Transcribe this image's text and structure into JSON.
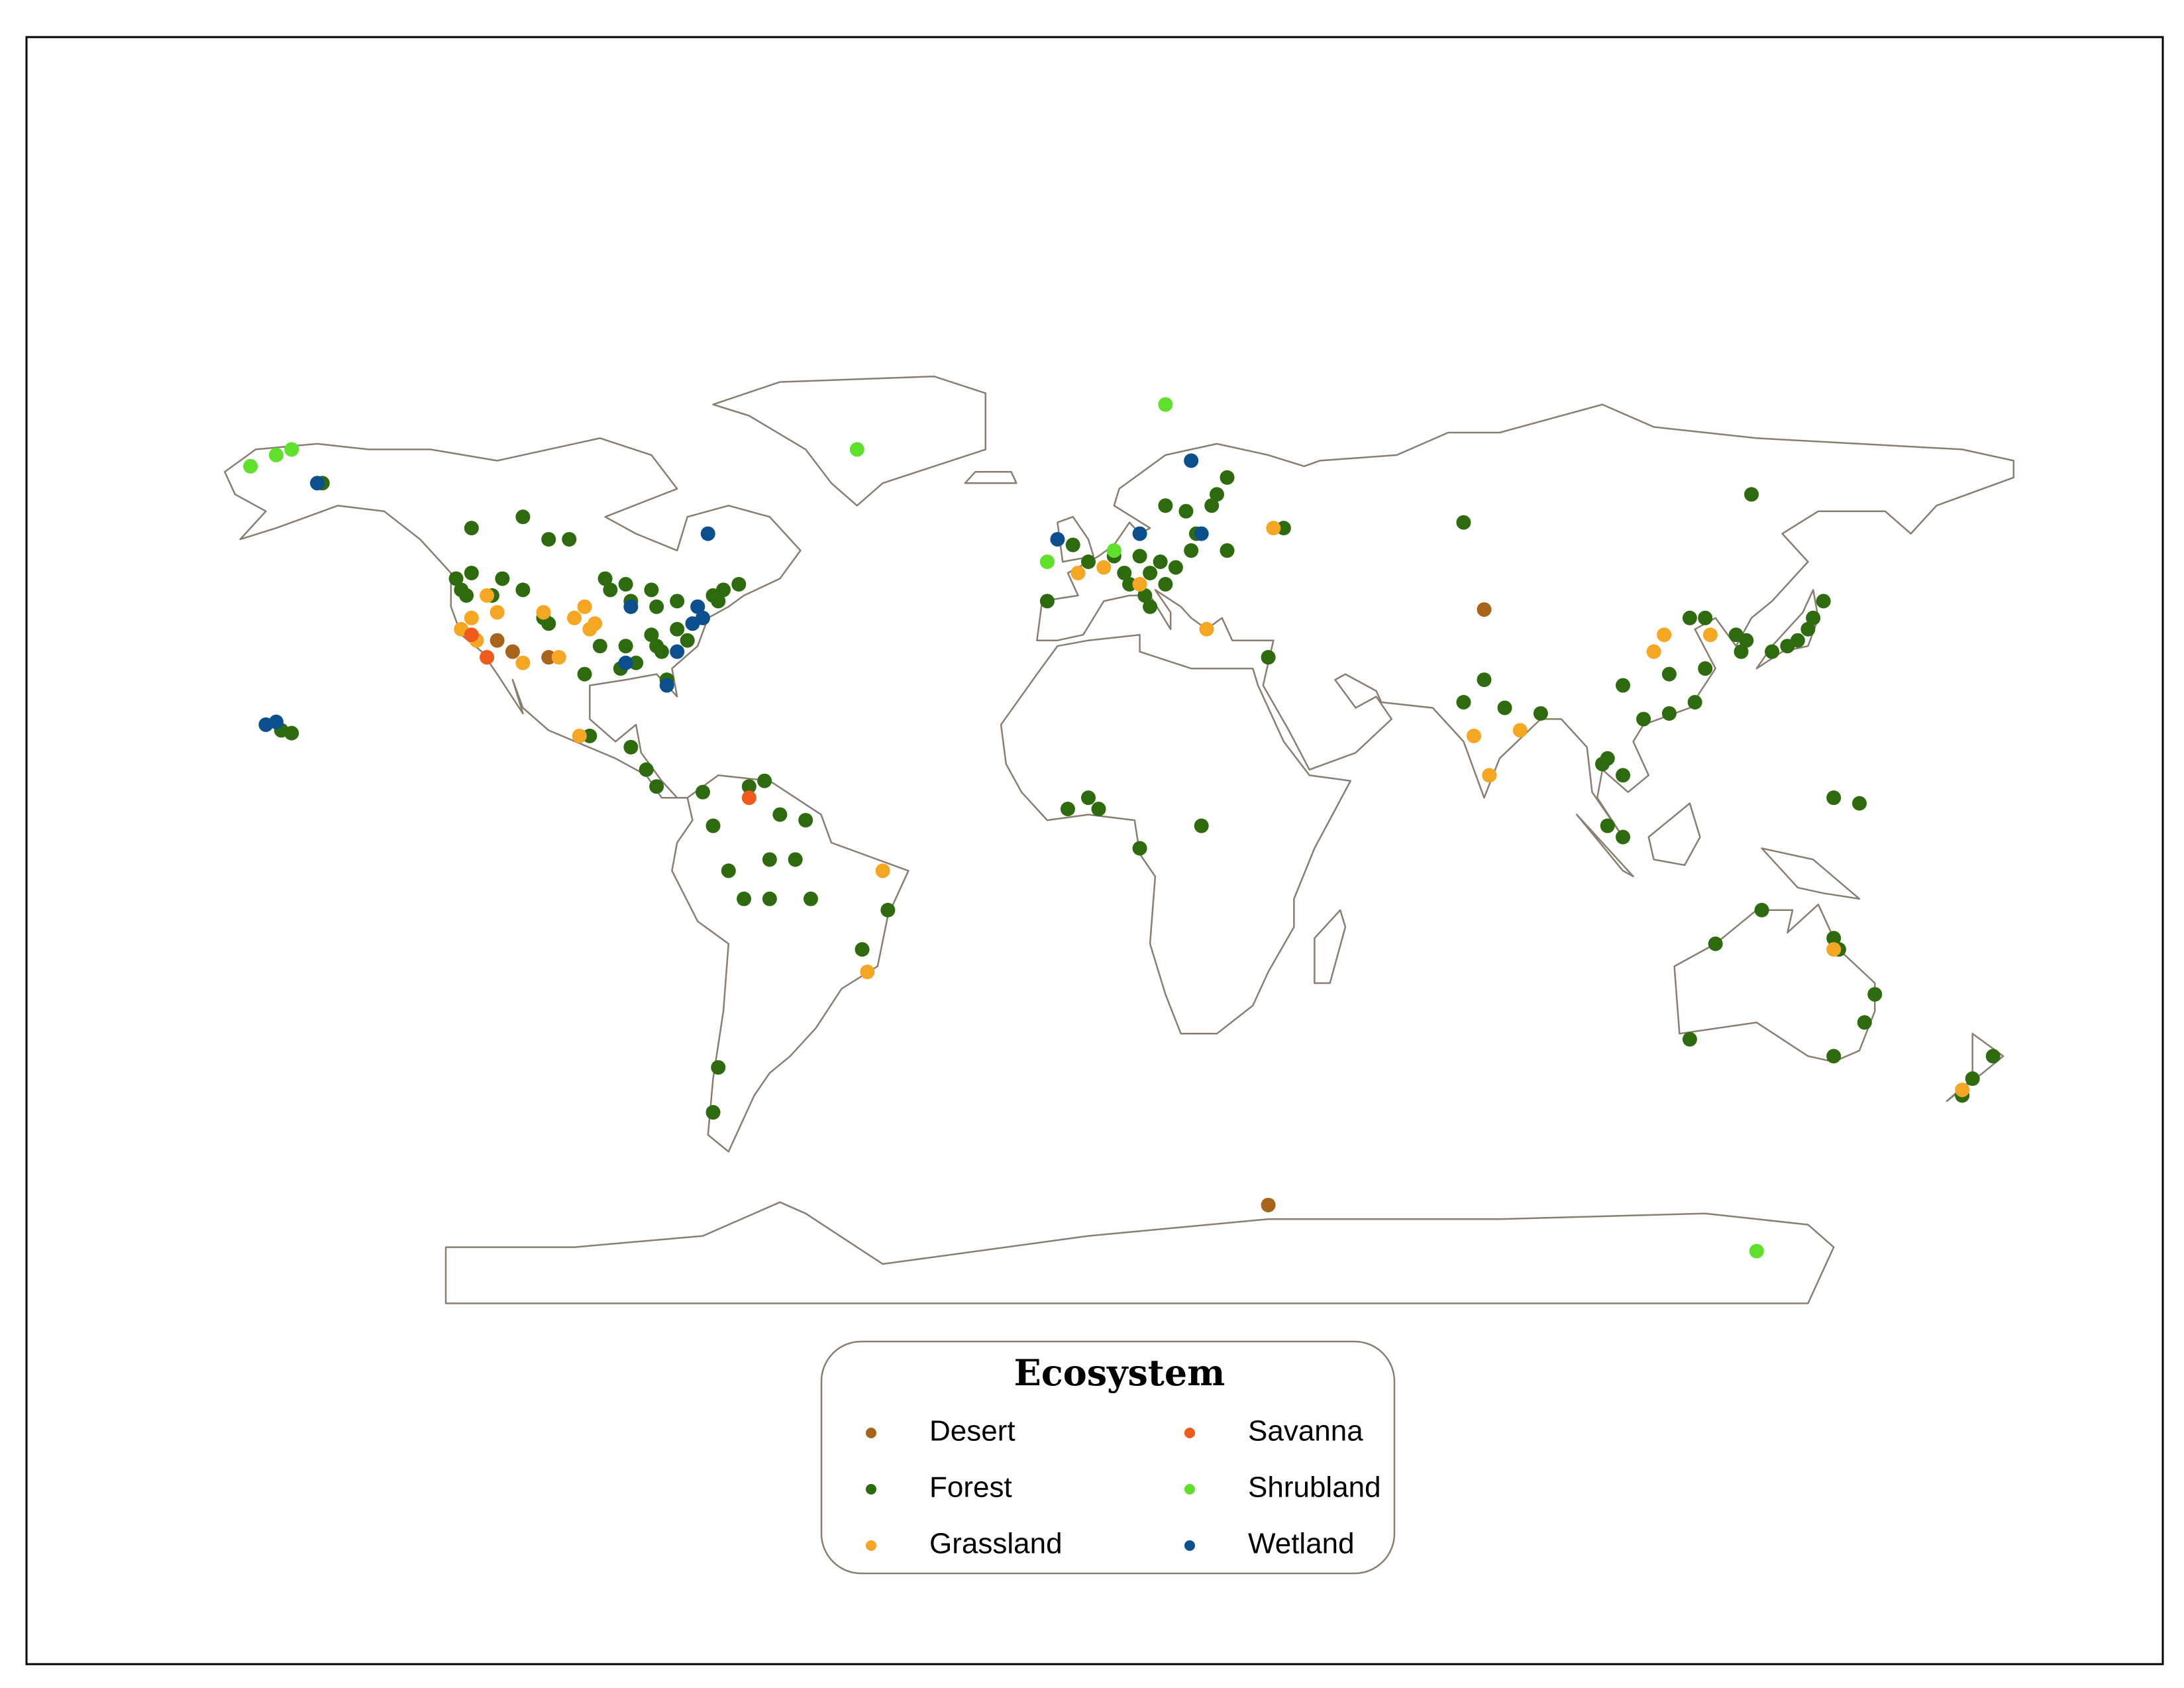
{
  "chart_data": {
    "type": "map",
    "legend_title": "Ecosystem",
    "series": [
      {
        "name": "Desert",
        "color": "#a8641a",
        "x": [
          -115,
          -105,
          -112,
          77,
          35
        ],
        "values": [
          36,
          33,
          34,
          41.5,
          -64.5
        ]
      },
      {
        "name": "Forest",
        "color": "#2e6b0e",
        "x": [
          -123,
          -122,
          -121,
          -120,
          -116,
          -114,
          -110,
          -106,
          -105,
          -94,
          -93,
          -90,
          -89,
          -85,
          -84,
          -80,
          -76,
          -73,
          -72,
          -71,
          -68,
          -80,
          -84,
          -85,
          -83,
          -78,
          -88,
          -90,
          -95,
          -98,
          -82,
          -91,
          -105,
          -101,
          -120,
          -110,
          -149,
          -157,
          -155,
          -97,
          -89,
          -84,
          -86,
          -75,
          -63,
          -66,
          -60,
          -55,
          -73,
          -70,
          -62,
          -57,
          -54,
          -62,
          -67,
          -39,
          -44,
          -72,
          -73,
          -8,
          -3,
          0,
          5,
          7,
          8,
          10,
          12,
          14,
          17,
          20,
          15,
          11,
          12,
          24,
          25,
          19,
          15,
          27,
          21,
          38,
          27,
          0,
          2,
          10,
          22,
          35,
          -4,
          73,
          129,
          77,
          73,
          88,
          81,
          104,
          113,
          108,
          100,
          104,
          101,
          104,
          117,
          120,
          126,
          127,
          128,
          133,
          136,
          138,
          140,
          141,
          143,
          120,
          118,
          113,
          145,
          150,
          101,
          131,
          145,
          146,
          153,
          151,
          145,
          117,
          122,
          172,
          176,
          170
        ],
        "values": [
          47,
          45,
          44,
          48,
          44,
          47,
          45,
          40,
          39,
          47,
          45,
          46,
          43,
          45,
          42,
          43,
          42,
          44,
          43,
          45,
          46,
          38,
          35,
          37,
          34,
          36,
          32,
          35,
          35,
          30,
          29,
          31,
          54,
          54,
          56,
          58,
          64,
          20,
          19.5,
          19,
          17,
          10,
          13,
          9,
          11,
          10,
          5,
          4,
          3,
          -5,
          -3,
          -3,
          -10,
          -10,
          -10,
          -12,
          -19,
          -40,
          -48,
          43,
          53,
          50,
          51,
          48,
          46,
          51,
          48,
          50,
          49,
          52,
          46,
          44,
          42,
          60,
          62,
          59,
          60,
          65,
          55,
          56,
          52,
          8,
          6,
          -1,
          3,
          33,
          6,
          57,
          62,
          29,
          25,
          23,
          24,
          28,
          30,
          22,
          14,
          12,
          3,
          1,
          40,
          40,
          37,
          34,
          36,
          34,
          35,
          36,
          38,
          40,
          43,
          31,
          25,
          23,
          8,
          7,
          15,
          -12,
          -17,
          -19,
          -27,
          -32,
          -38,
          -35,
          -18,
          -42,
          -38,
          -45
        ]
      },
      {
        "name": "Grassland",
        "color": "#f5a623",
        "x": [
          -122,
          -120,
          -117,
          -115,
          -106,
          -100,
          -98,
          -96,
          -103,
          -97,
          -110,
          -119,
          -99,
          -40,
          -43,
          -2,
          3,
          10,
          36,
          23,
          110,
          112,
          75,
          78,
          84,
          121,
          145,
          170
        ],
        "values": [
          38,
          40,
          44,
          41,
          41,
          40,
          42,
          39,
          33,
          38,
          32,
          36,
          19,
          -5,
          -23,
          48,
          49,
          46,
          56,
          38,
          34,
          37,
          19,
          12,
          20,
          37,
          -19,
          -44
        ]
      },
      {
        "name": "Savanna",
        "color": "#f05a1a",
        "x": [
          -120,
          -117,
          -66
        ],
        "values": [
          37,
          33,
          8
        ]
      },
      {
        "name": "Shrubland",
        "color": "#5fe02a",
        "x": [
          -163,
          -158,
          -155,
          -45,
          15,
          5,
          -8,
          130
        ],
        "values": [
          67,
          69,
          70,
          70,
          78,
          52,
          50,
          -72.7
        ]
      },
      {
        "name": "Wetland",
        "color": "#0b4f8f",
        "x": [
          -160,
          -158,
          -150,
          -74,
          -76,
          -75,
          -77,
          -90,
          -80,
          -82,
          -89,
          -6,
          10,
          22,
          20
        ],
        "values": [
          21,
          21.5,
          64,
          55,
          42,
          40,
          39,
          32,
          34,
          28,
          42,
          54,
          55,
          55,
          68
        ]
      }
    ]
  }
}
